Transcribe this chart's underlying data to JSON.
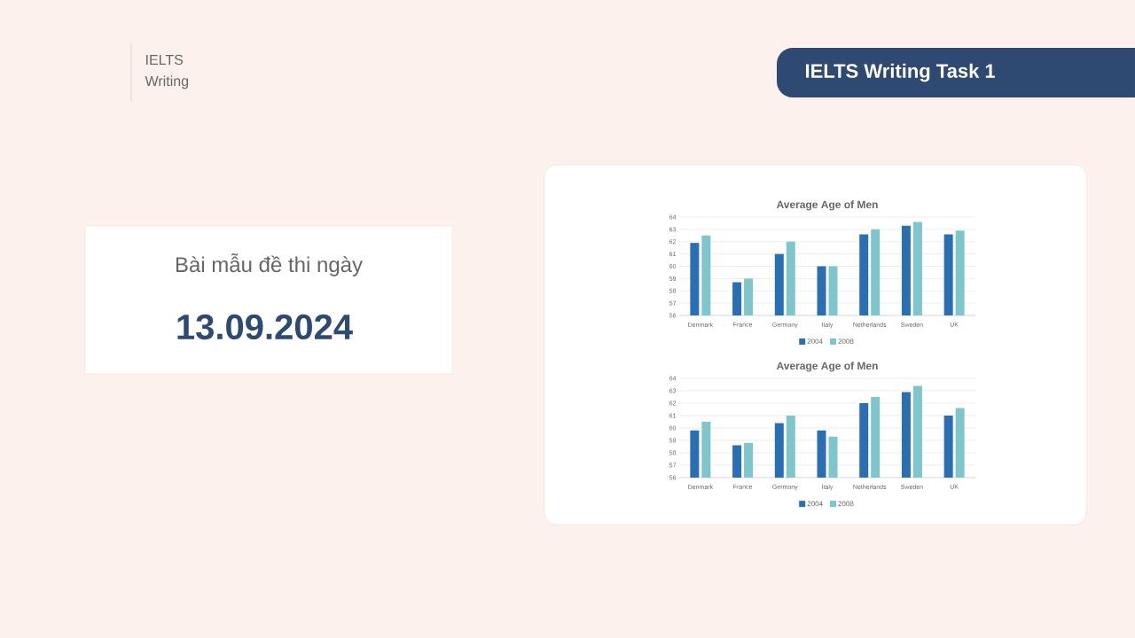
{
  "chart_data": [
    {
      "type": "other",
      "title": "IELTS Writing Task 1",
      "annotations": [
        "IELTS Writing",
        "Bài mẫu đề thi ngày",
        "13.09.2024"
      ]
    },
    {
      "type": "bar",
      "title": "Average Age of Men",
      "categories": [
        "Denmark",
        "France",
        "Germany",
        "Italy",
        "Netherlands",
        "Sweden",
        "UK"
      ],
      "series": [
        {
          "name": "2004",
          "color": "#2a6fb3",
          "values": [
            61.9,
            58.7,
            61.0,
            60.0,
            62.6,
            63.3,
            62.6
          ]
        },
        {
          "name": "2008",
          "color": "#7ec5cc",
          "values": [
            62.5,
            59.0,
            62.0,
            60.0,
            63.0,
            63.6,
            62.9
          ]
        }
      ],
      "ylim": [
        56,
        64
      ],
      "yticks": [
        56,
        57,
        58,
        59,
        60,
        61,
        62,
        63,
        64
      ],
      "grid": "y",
      "legend": "bottom"
    },
    {
      "type": "bar",
      "title": "Average Age of Men",
      "categories": [
        "Denmark",
        "France",
        "Germany",
        "Italy",
        "Netherlands",
        "Sweden",
        "UK"
      ],
      "series": [
        {
          "name": "2004",
          "color": "#2a6fb3",
          "values": [
            59.8,
            58.6,
            60.4,
            59.8,
            62.0,
            62.9,
            61.0
          ]
        },
        {
          "name": "2008",
          "color": "#7ec5cc",
          "values": [
            60.5,
            58.8,
            61.0,
            59.3,
            62.5,
            63.4,
            61.6
          ]
        }
      ],
      "ylim": [
        56,
        64
      ],
      "yticks": [
        56,
        57,
        58,
        59,
        60,
        61,
        62,
        63,
        64
      ],
      "grid": "y",
      "legend": "bottom"
    }
  ]
}
